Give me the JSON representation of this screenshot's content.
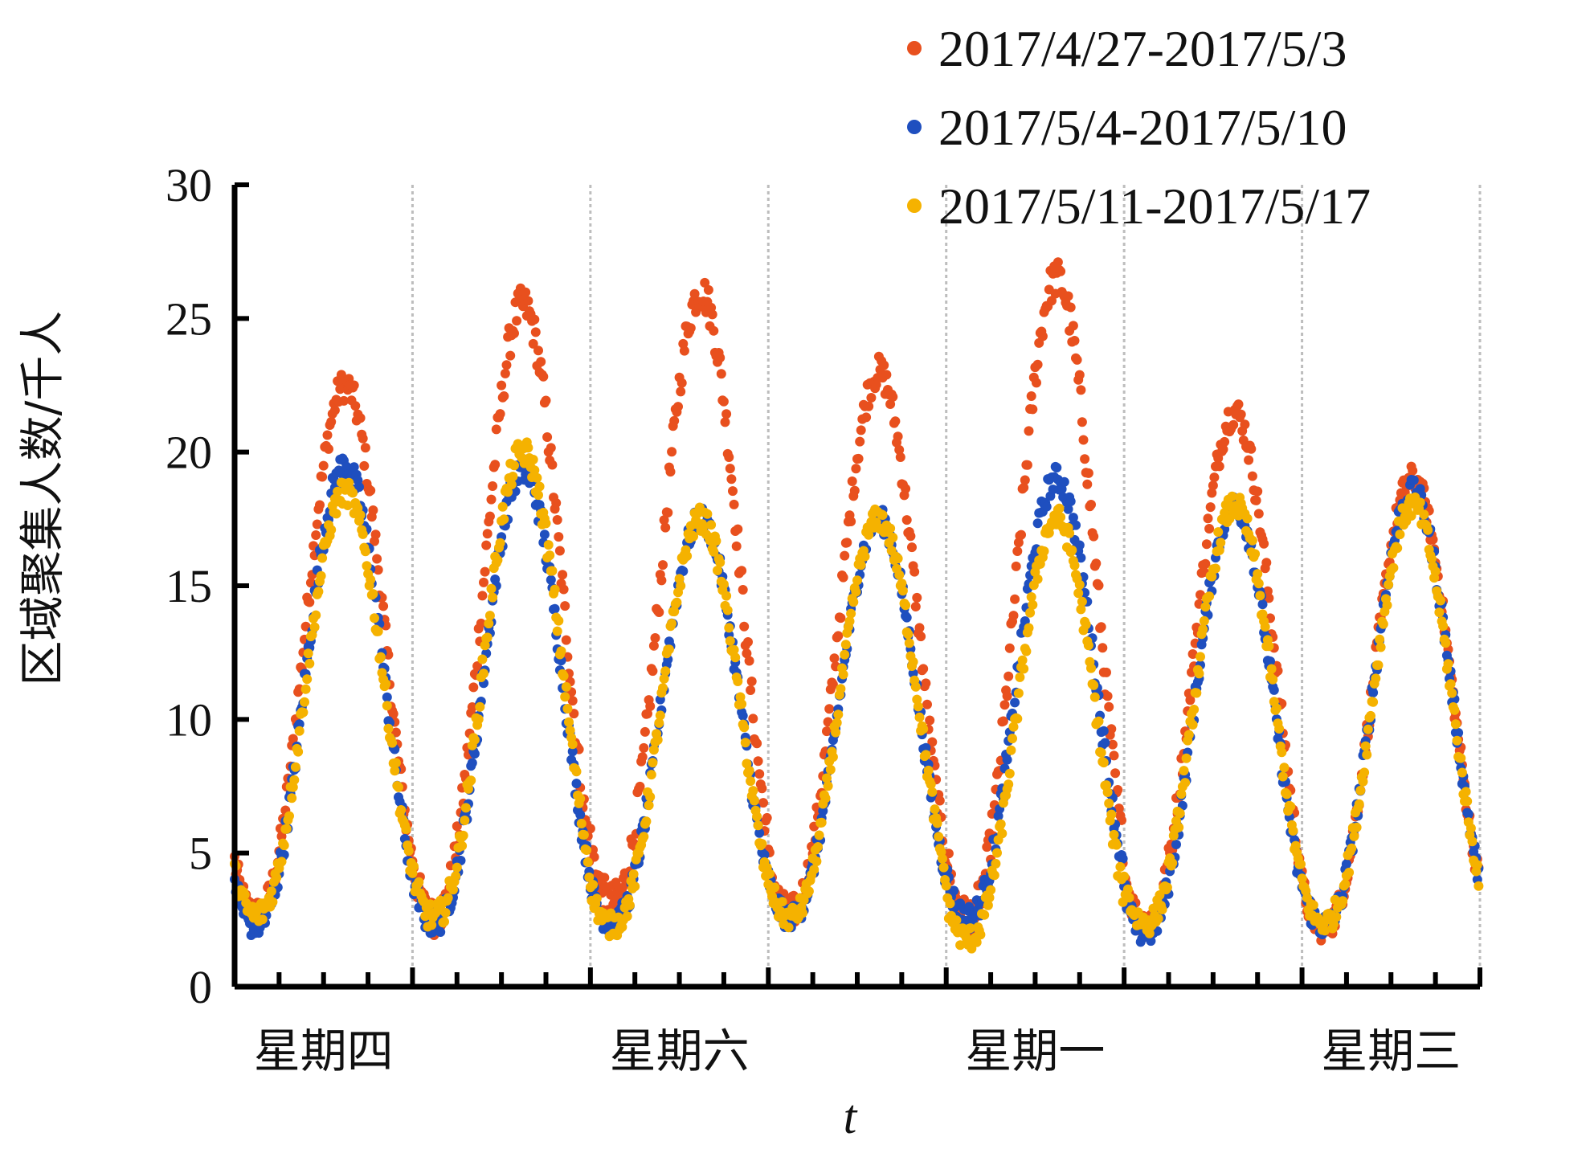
{
  "chart_data": {
    "type": "scatter",
    "xlabel": "t",
    "ylabel": "区域聚集人数/千人",
    "ylim": [
      0,
      30
    ],
    "yticks": [
      "0",
      "5",
      "10",
      "15",
      "20",
      "25",
      "30"
    ],
    "xlim": [
      0,
      7
    ],
    "x_tick_labels": [
      {
        "label": "星期四",
        "day": 0
      },
      {
        "label": "星期六",
        "day": 2
      },
      {
        "label": "星期一",
        "day": 4
      },
      {
        "label": "星期三",
        "day": 6
      }
    ],
    "grid": "vertical day boundaries (dotted gray)",
    "legend_position": "top-right",
    "series": [
      {
        "name": "2017/4/27-2017/5/3",
        "color": "#E8501E",
        "daily_peaks": [
          22.5,
          25.5,
          26.0,
          23.0,
          26.5,
          21.5,
          19.0
        ],
        "daily_minima": [
          2.7,
          2.6,
          3.2,
          2.8,
          2.6,
          2.4,
          2.2
        ]
      },
      {
        "name": "2017/5/4-2017/5/10",
        "color": "#1F4FBF",
        "daily_peaks": [
          19.5,
          19.3,
          17.5,
          17.5,
          19.0,
          18.0,
          18.5
        ],
        "daily_minima": [
          2.3,
          2.4,
          2.4,
          2.6,
          2.6,
          2.0,
          2.3
        ]
      },
      {
        "name": "2017/5/11-2017/5/17",
        "color": "#F5B200",
        "daily_peaks": [
          18.5,
          20.0,
          17.5,
          17.5,
          17.5,
          18.0,
          18.0
        ],
        "daily_minima": [
          2.7,
          2.6,
          2.3,
          2.6,
          1.8,
          2.4,
          2.4
        ]
      }
    ]
  }
}
